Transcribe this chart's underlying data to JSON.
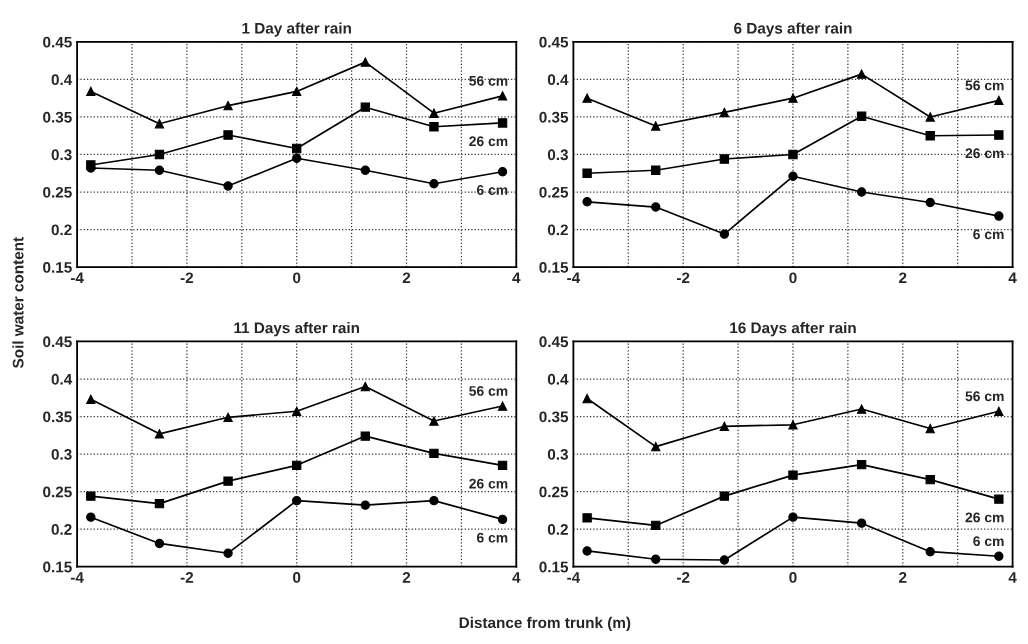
{
  "chart_data": [
    {
      "type": "line",
      "title": "1 Day after rain",
      "xlabel": "Distance from trunk (m)",
      "ylabel": "Soil water content",
      "xlim": [
        -4,
        4
      ],
      "ylim": [
        0.15,
        0.45
      ],
      "xticks": [
        -4,
        {
          "value": -3,
          "label": null
        },
        -2,
        {
          "value": -1,
          "label": null
        },
        0,
        {
          "value": 1,
          "label": null
        },
        2,
        {
          "value": 3,
          "label": null
        },
        4
      ],
      "yticks": [
        0.15,
        0.2,
        0.25,
        0.3,
        0.35,
        0.4,
        0.45
      ],
      "grid": true,
      "legend": false,
      "line_style": "solid",
      "x": [
        -3.75,
        -2.5,
        -1.25,
        0,
        1.25,
        2.5,
        3.75
      ],
      "series": [
        {
          "name": "56 cm",
          "color": "#000000",
          "marker": "triangle",
          "values": [
            0.384,
            0.341,
            0.365,
            0.384,
            0.423,
            0.355,
            0.378
          ]
        },
        {
          "name": "26 cm",
          "color": "#000000",
          "marker": "square",
          "values": [
            0.286,
            0.3,
            0.326,
            0.308,
            0.363,
            0.337,
            0.342
          ]
        },
        {
          "name": "6 cm",
          "color": "#000000",
          "marker": "circle",
          "values": [
            0.282,
            0.279,
            0.258,
            0.295,
            0.279,
            0.261,
            0.277
          ]
        }
      ]
    },
    {
      "type": "line",
      "title": "6 Days after rain",
      "xlim": [
        -4,
        4
      ],
      "ylim": [
        0.15,
        0.45
      ],
      "xticks": [
        -4,
        {
          "value": -3,
          "label": null
        },
        -2,
        {
          "value": -1,
          "label": null
        },
        0,
        {
          "value": 1,
          "label": null
        },
        2,
        {
          "value": 3,
          "label": null
        },
        4
      ],
      "yticks": [
        0.15,
        0.2,
        0.25,
        0.3,
        0.35,
        0.4,
        0.45
      ],
      "grid": true,
      "legend": false,
      "line_style": "solid",
      "x": [
        -3.75,
        -2.5,
        -1.25,
        0,
        1.25,
        2.5,
        3.75
      ],
      "series": [
        {
          "name": "56 cm",
          "color": "#000000",
          "marker": "triangle",
          "values": [
            0.375,
            0.338,
            0.356,
            0.375,
            0.407,
            0.35,
            0.372
          ]
        },
        {
          "name": "26 cm",
          "color": "#000000",
          "marker": "square",
          "values": [
            0.275,
            0.279,
            0.294,
            0.3,
            0.351,
            0.325,
            0.326
          ]
        },
        {
          "name": "6 cm",
          "color": "#000000",
          "marker": "circle",
          "values": [
            0.237,
            0.23,
            0.194,
            0.271,
            0.25,
            0.236,
            0.218
          ]
        }
      ]
    },
    {
      "type": "line",
      "title": "11 Days after rain",
      "xlim": [
        -4,
        4
      ],
      "ylim": [
        0.15,
        0.45
      ],
      "xticks": [
        -4,
        {
          "value": -3,
          "label": null
        },
        -2,
        {
          "value": -1,
          "label": null
        },
        0,
        {
          "value": 1,
          "label": null
        },
        2,
        {
          "value": 3,
          "label": null
        },
        4
      ],
      "yticks": [
        0.15,
        0.2,
        0.25,
        0.3,
        0.35,
        0.4,
        0.45
      ],
      "grid": true,
      "legend": false,
      "line_style": "solid",
      "x": [
        -3.75,
        -2.5,
        -1.25,
        0,
        1.25,
        2.5,
        3.75
      ],
      "series": [
        {
          "name": "56 cm",
          "color": "#000000",
          "marker": "triangle",
          "values": [
            0.373,
            0.327,
            0.349,
            0.357,
            0.39,
            0.344,
            0.364
          ]
        },
        {
          "name": "26 cm",
          "color": "#000000",
          "marker": "square",
          "values": [
            0.244,
            0.234,
            0.264,
            0.285,
            0.324,
            0.301,
            0.285
          ]
        },
        {
          "name": "6 cm",
          "color": "#000000",
          "marker": "circle",
          "values": [
            0.216,
            0.181,
            0.168,
            0.238,
            0.232,
            0.238,
            0.213
          ]
        }
      ]
    },
    {
      "type": "line",
      "title": "16 Days after rain",
      "xlim": [
        -4,
        4
      ],
      "ylim": [
        0.15,
        0.45
      ],
      "xticks": [
        -4,
        {
          "value": -3,
          "label": null
        },
        -2,
        {
          "value": -1,
          "label": null
        },
        0,
        {
          "value": 1,
          "label": null
        },
        2,
        {
          "value": 3,
          "label": null
        },
        4
      ],
      "yticks": [
        0.15,
        0.2,
        0.25,
        0.3,
        0.35,
        0.4,
        0.45
      ],
      "grid": true,
      "legend": false,
      "line_style": "solid",
      "x": [
        -3.75,
        -2.5,
        -1.25,
        0,
        1.25,
        2.5,
        3.75
      ],
      "series": [
        {
          "name": "56 cm",
          "color": "#000000",
          "marker": "triangle",
          "values": [
            0.374,
            0.31,
            0.337,
            0.339,
            0.36,
            0.334,
            0.357
          ]
        },
        {
          "name": "26 cm",
          "color": "#000000",
          "marker": "square",
          "values": [
            0.215,
            0.205,
            0.244,
            0.272,
            0.286,
            0.266,
            0.24
          ]
        },
        {
          "name": "6 cm",
          "color": "#000000",
          "marker": "circle",
          "values": [
            0.171,
            0.16,
            0.159,
            0.216,
            0.208,
            0.17,
            0.164
          ]
        }
      ]
    }
  ]
}
